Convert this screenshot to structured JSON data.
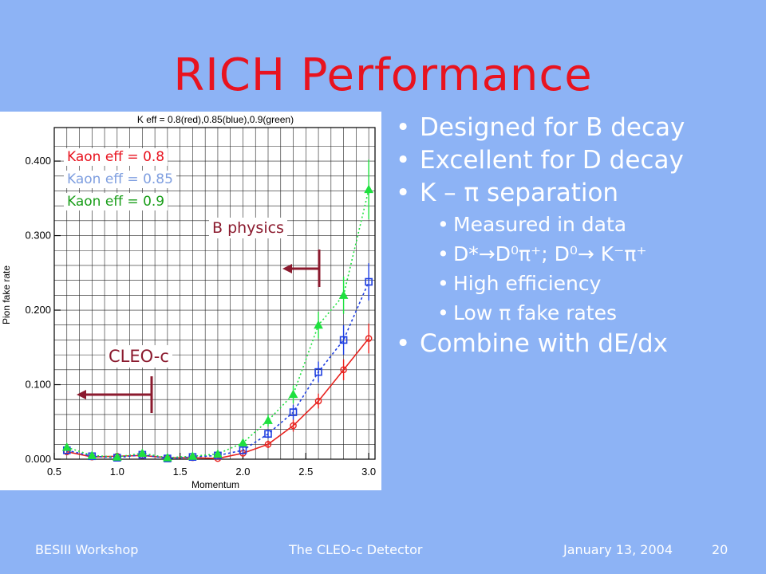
{
  "slide": {
    "title": "RICH Performance",
    "bullets": [
      {
        "level": 1,
        "text": "Designed for B decay"
      },
      {
        "level": 1,
        "text": "Excellent for D decay"
      },
      {
        "level": 1,
        "text": "K – π separation"
      },
      {
        "level": 2,
        "text": "Measured in data"
      },
      {
        "level": 2,
        "text": "D*→D⁰π⁺; D⁰→ K⁻π⁺"
      },
      {
        "level": 2,
        "text": "High efficiency"
      },
      {
        "level": 2,
        "text": "Low π fake rates"
      },
      {
        "level": 1,
        "text": "Combine with dE/dx"
      }
    ],
    "footer": {
      "left": "BESIII Workshop",
      "center": "The CLEO-c Detector",
      "right": "January 13, 2004",
      "page": "20"
    },
    "annotations": {
      "b_physics": "B physics",
      "cleo_c": "CLEO-c"
    }
  },
  "chart_data": {
    "type": "line",
    "title": "K eff = 0.8(red),0.85(blue),0.9(green)",
    "xlabel": "Momentum",
    "ylabel": "Pion fake rate",
    "xlim": [
      0.5,
      3.05
    ],
    "ylim": [
      0.0,
      0.445
    ],
    "grid": true,
    "xticks": [
      "0.5",
      "1.0",
      "1.5",
      "2.0",
      "2.5",
      "3.0"
    ],
    "yticks": [
      "0.000",
      "0.100",
      "0.200",
      "0.300",
      "0.400"
    ],
    "legend": [
      {
        "text": "Kaon eff   = 0.8",
        "color": "#e8131f"
      },
      {
        "text": "Kaon eff = 0.85",
        "color": "#7f9fe0"
      },
      {
        "text": "Kaon eff = 0.9",
        "color": "#1a9e1a"
      }
    ],
    "x": [
      0.6,
      0.8,
      1.0,
      1.2,
      1.4,
      1.6,
      1.8,
      2.0,
      2.2,
      2.4,
      2.6,
      2.8,
      3.0
    ],
    "series": [
      {
        "name": "Kaon eff   = 0.8",
        "color": "#e8231f",
        "marker": "circle",
        "values": [
          0.01,
          0.003,
          0.004,
          0.005,
          0.002,
          0.002,
          0.001,
          0.008,
          0.02,
          0.045,
          0.078,
          0.12,
          0.162
        ],
        "errors": [
          0.003,
          0.002,
          0.002,
          0.002,
          0.002,
          0.002,
          0.002,
          0.003,
          0.005,
          0.008,
          0.01,
          0.014,
          0.02
        ]
      },
      {
        "name": "Kaon eff = 0.85",
        "color": "#1f3fe0",
        "marker": "square",
        "values": [
          0.012,
          0.004,
          0.002,
          0.006,
          0.001,
          0.003,
          0.005,
          0.012,
          0.034,
          0.063,
          0.117,
          0.16,
          0.238
        ],
        "errors": [
          0.003,
          0.002,
          0.002,
          0.002,
          0.002,
          0.002,
          0.002,
          0.004,
          0.006,
          0.01,
          0.014,
          0.02,
          0.025
        ]
      },
      {
        "name": "Kaon eff = 0.9",
        "color": "#1fe03f",
        "marker": "triangle",
        "values": [
          0.016,
          0.005,
          0.003,
          0.008,
          0.002,
          0.004,
          0.007,
          0.022,
          0.052,
          0.087,
          0.18,
          0.22,
          0.362
        ],
        "errors": [
          0.003,
          0.002,
          0.002,
          0.002,
          0.002,
          0.002,
          0.003,
          0.005,
          0.008,
          0.012,
          0.018,
          0.025,
          0.04
        ]
      }
    ]
  }
}
